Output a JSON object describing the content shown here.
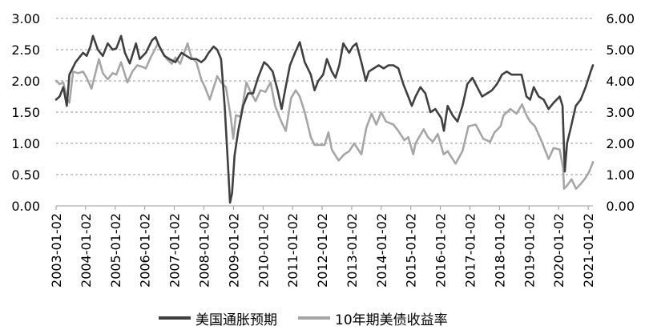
{
  "chart_data": {
    "type": "line",
    "title": "",
    "xlabel": "",
    "ylabel": "",
    "y_left": {
      "lim": [
        0,
        3
      ],
      "ticks": [
        "0.00",
        "0.50",
        "1.00",
        "1.50",
        "2.00",
        "2.50",
        "3.00"
      ]
    },
    "y_right": {
      "lim": [
        0,
        6
      ],
      "ticks": [
        "0.00",
        "1.00",
        "2.00",
        "3.00",
        "4.00",
        "5.00",
        "6.00"
      ]
    },
    "x_ticks": [
      "2003-01-02",
      "2004-01-02",
      "2005-01-02",
      "2006-01-02",
      "2007-01-02",
      "2008-01-02",
      "2009-01-02",
      "2010-01-02",
      "2011-01-02",
      "2012-01-02",
      "2013-01-02",
      "2014-01-02",
      "2015-01-02",
      "2016-01-02",
      "2017-01-02",
      "2018-01-02",
      "2019-01-02",
      "2020-01-02",
      "2021-01-02"
    ],
    "grid": {
      "horizontal": true,
      "vertical": false,
      "style": "dashed"
    },
    "legend": {
      "position": "bottom"
    },
    "series": [
      {
        "name": "美国通胀预期",
        "axis": "left",
        "color": "#404040",
        "points": [
          [
            "2003-01-02",
            1.7
          ],
          [
            "2003-02-15",
            1.75
          ],
          [
            "2003-04-01",
            1.9
          ],
          [
            "2003-05-15",
            1.6
          ],
          [
            "2003-06-15",
            2.1
          ],
          [
            "2003-09-01",
            2.3
          ],
          [
            "2003-12-01",
            2.45
          ],
          [
            "2004-01-15",
            2.4
          ],
          [
            "2004-03-01",
            2.55
          ],
          [
            "2004-04-01",
            2.72
          ],
          [
            "2004-06-01",
            2.5
          ],
          [
            "2004-08-01",
            2.4
          ],
          [
            "2004-10-01",
            2.6
          ],
          [
            "2004-12-01",
            2.5
          ],
          [
            "2005-01-15",
            2.52
          ],
          [
            "2005-03-15",
            2.72
          ],
          [
            "2005-05-01",
            2.45
          ],
          [
            "2005-07-01",
            2.28
          ],
          [
            "2005-09-15",
            2.6
          ],
          [
            "2005-11-01",
            2.35
          ],
          [
            "2006-01-15",
            2.45
          ],
          [
            "2006-04-01",
            2.65
          ],
          [
            "2006-05-15",
            2.7
          ],
          [
            "2006-07-01",
            2.55
          ],
          [
            "2006-09-01",
            2.4
          ],
          [
            "2006-11-01",
            2.35
          ],
          [
            "2007-01-15",
            2.3
          ],
          [
            "2007-04-01",
            2.45
          ],
          [
            "2007-06-01",
            2.4
          ],
          [
            "2007-08-01",
            2.35
          ],
          [
            "2007-10-01",
            2.35
          ],
          [
            "2007-12-01",
            2.3
          ],
          [
            "2008-01-15",
            2.35
          ],
          [
            "2008-03-01",
            2.45
          ],
          [
            "2008-05-01",
            2.55
          ],
          [
            "2008-06-15",
            2.5
          ],
          [
            "2008-08-01",
            2.35
          ],
          [
            "2008-09-15",
            1.6
          ],
          [
            "2008-10-20",
            0.8
          ],
          [
            "2008-11-20",
            0.05
          ],
          [
            "2008-12-15",
            0.2
          ],
          [
            "2009-01-15",
            0.8
          ],
          [
            "2009-03-01",
            1.2
          ],
          [
            "2009-05-01",
            1.6
          ],
          [
            "2009-07-01",
            1.8
          ],
          [
            "2009-09-01",
            1.8
          ],
          [
            "2009-11-01",
            2.05
          ],
          [
            "2010-01-15",
            2.3
          ],
          [
            "2010-03-01",
            2.25
          ],
          [
            "2010-05-01",
            2.15
          ],
          [
            "2010-07-01",
            1.85
          ],
          [
            "2010-08-20",
            1.55
          ],
          [
            "2010-10-01",
            1.85
          ],
          [
            "2010-12-01",
            2.25
          ],
          [
            "2011-02-01",
            2.45
          ],
          [
            "2011-04-01",
            2.62
          ],
          [
            "2011-06-01",
            2.3
          ],
          [
            "2011-08-15",
            2.1
          ],
          [
            "2011-10-01",
            1.85
          ],
          [
            "2011-11-15",
            2.0
          ],
          [
            "2012-01-15",
            2.1
          ],
          [
            "2012-03-01",
            2.35
          ],
          [
            "2012-05-01",
            2.15
          ],
          [
            "2012-06-15",
            2.05
          ],
          [
            "2012-08-01",
            2.25
          ],
          [
            "2012-09-20",
            2.6
          ],
          [
            "2012-12-01",
            2.45
          ],
          [
            "2013-01-15",
            2.55
          ],
          [
            "2013-03-01",
            2.6
          ],
          [
            "2013-05-01",
            2.3
          ],
          [
            "2013-06-25",
            2.0
          ],
          [
            "2013-08-01",
            2.15
          ],
          [
            "2013-10-01",
            2.2
          ],
          [
            "2013-12-01",
            2.25
          ],
          [
            "2014-02-01",
            2.2
          ],
          [
            "2014-04-01",
            2.25
          ],
          [
            "2014-06-01",
            2.25
          ],
          [
            "2014-08-01",
            2.2
          ],
          [
            "2014-10-01",
            1.95
          ],
          [
            "2014-12-01",
            1.75
          ],
          [
            "2015-01-15",
            1.6
          ],
          [
            "2015-03-01",
            1.75
          ],
          [
            "2015-05-01",
            1.9
          ],
          [
            "2015-07-01",
            1.8
          ],
          [
            "2015-09-01",
            1.5
          ],
          [
            "2015-11-01",
            1.55
          ],
          [
            "2016-01-15",
            1.4
          ],
          [
            "2016-02-15",
            1.2
          ],
          [
            "2016-04-01",
            1.6
          ],
          [
            "2016-06-01",
            1.45
          ],
          [
            "2016-08-01",
            1.35
          ],
          [
            "2016-10-01",
            1.6
          ],
          [
            "2016-12-01",
            1.95
          ],
          [
            "2017-02-01",
            2.05
          ],
          [
            "2017-04-01",
            1.9
          ],
          [
            "2017-06-01",
            1.75
          ],
          [
            "2017-08-01",
            1.8
          ],
          [
            "2017-10-01",
            1.85
          ],
          [
            "2017-12-01",
            1.95
          ],
          [
            "2018-02-01",
            2.1
          ],
          [
            "2018-04-01",
            2.15
          ],
          [
            "2018-06-01",
            2.1
          ],
          [
            "2018-08-01",
            2.1
          ],
          [
            "2018-10-01",
            2.1
          ],
          [
            "2018-12-01",
            1.75
          ],
          [
            "2019-01-15",
            1.7
          ],
          [
            "2019-03-01",
            1.9
          ],
          [
            "2019-05-01",
            1.75
          ],
          [
            "2019-07-01",
            1.7
          ],
          [
            "2019-09-01",
            1.55
          ],
          [
            "2019-11-01",
            1.65
          ],
          [
            "2020-01-15",
            1.75
          ],
          [
            "2020-02-20",
            1.6
          ],
          [
            "2020-03-19",
            0.55
          ],
          [
            "2020-04-15",
            1.0
          ],
          [
            "2020-06-01",
            1.25
          ],
          [
            "2020-08-01",
            1.6
          ],
          [
            "2020-10-01",
            1.7
          ],
          [
            "2020-12-01",
            1.9
          ],
          [
            "2021-02-01",
            2.15
          ],
          [
            "2021-03-01",
            2.25
          ]
        ]
      },
      {
        "name": "10年期美债收益率",
        "axis": "right",
        "color": "#a6a6a6",
        "points": [
          [
            "2003-01-02",
            4.0
          ],
          [
            "2003-02-15",
            3.9
          ],
          [
            "2003-04-01",
            3.95
          ],
          [
            "2003-05-15",
            3.45
          ],
          [
            "2003-06-15",
            3.3
          ],
          [
            "2003-08-01",
            4.3
          ],
          [
            "2003-10-01",
            4.25
          ],
          [
            "2003-12-01",
            4.3
          ],
          [
            "2004-01-15",
            4.1
          ],
          [
            "2004-03-15",
            3.75
          ],
          [
            "2004-06-15",
            4.7
          ],
          [
            "2004-08-01",
            4.25
          ],
          [
            "2004-10-01",
            4.05
          ],
          [
            "2004-12-01",
            4.25
          ],
          [
            "2005-01-15",
            4.2
          ],
          [
            "2005-03-15",
            4.6
          ],
          [
            "2005-06-01",
            3.95
          ],
          [
            "2005-08-01",
            4.3
          ],
          [
            "2005-10-01",
            4.5
          ],
          [
            "2005-12-01",
            4.45
          ],
          [
            "2006-01-15",
            4.4
          ],
          [
            "2006-03-15",
            4.75
          ],
          [
            "2006-06-15",
            5.2
          ],
          [
            "2006-08-01",
            4.95
          ],
          [
            "2006-10-01",
            4.7
          ],
          [
            "2006-12-01",
            4.55
          ],
          [
            "2007-01-15",
            4.75
          ],
          [
            "2007-03-15",
            4.55
          ],
          [
            "2007-06-15",
            5.2
          ],
          [
            "2007-08-01",
            4.75
          ],
          [
            "2007-10-01",
            4.6
          ],
          [
            "2007-12-01",
            4.05
          ],
          [
            "2008-01-15",
            3.8
          ],
          [
            "2008-03-15",
            3.4
          ],
          [
            "2008-06-15",
            4.15
          ],
          [
            "2008-08-01",
            3.95
          ],
          [
            "2008-10-01",
            3.8
          ],
          [
            "2008-12-01",
            2.8
          ],
          [
            "2008-12-30",
            2.15
          ],
          [
            "2009-02-01",
            2.9
          ],
          [
            "2009-04-01",
            2.85
          ],
          [
            "2009-06-10",
            3.95
          ],
          [
            "2009-08-01",
            3.65
          ],
          [
            "2009-10-01",
            3.35
          ],
          [
            "2009-12-01",
            3.7
          ],
          [
            "2010-02-01",
            3.65
          ],
          [
            "2010-04-05",
            3.95
          ],
          [
            "2010-06-01",
            3.2
          ],
          [
            "2010-08-15",
            2.7
          ],
          [
            "2010-10-10",
            2.4
          ],
          [
            "2010-12-15",
            3.45
          ],
          [
            "2011-02-10",
            3.7
          ],
          [
            "2011-04-01",
            3.5
          ],
          [
            "2011-06-01",
            3.0
          ],
          [
            "2011-08-15",
            2.2
          ],
          [
            "2011-10-01",
            1.95
          ],
          [
            "2011-12-01",
            1.95
          ],
          [
            "2012-02-01",
            1.95
          ],
          [
            "2012-03-20",
            2.35
          ],
          [
            "2012-05-01",
            1.8
          ],
          [
            "2012-07-25",
            1.45
          ],
          [
            "2012-10-01",
            1.65
          ],
          [
            "2012-12-01",
            1.75
          ],
          [
            "2013-02-01",
            2.0
          ],
          [
            "2013-05-01",
            1.65
          ],
          [
            "2013-07-01",
            2.5
          ],
          [
            "2013-09-05",
            2.95
          ],
          [
            "2013-11-01",
            2.6
          ],
          [
            "2014-01-01",
            3.0
          ],
          [
            "2014-03-01",
            2.7
          ],
          [
            "2014-06-01",
            2.6
          ],
          [
            "2014-08-01",
            2.4
          ],
          [
            "2014-10-15",
            2.1
          ],
          [
            "2014-12-01",
            2.2
          ],
          [
            "2015-01-31",
            1.65
          ],
          [
            "2015-03-01",
            2.0
          ],
          [
            "2015-06-10",
            2.45
          ],
          [
            "2015-08-01",
            2.2
          ],
          [
            "2015-10-01",
            2.05
          ],
          [
            "2015-12-01",
            2.3
          ],
          [
            "2016-02-11",
            1.65
          ],
          [
            "2016-04-01",
            1.75
          ],
          [
            "2016-07-08",
            1.35
          ],
          [
            "2016-10-01",
            1.75
          ],
          [
            "2016-12-15",
            2.55
          ],
          [
            "2017-03-15",
            2.6
          ],
          [
            "2017-06-15",
            2.15
          ],
          [
            "2017-09-08",
            2.05
          ],
          [
            "2017-11-01",
            2.35
          ],
          [
            "2018-01-15",
            2.55
          ],
          [
            "2018-02-21",
            2.9
          ],
          [
            "2018-05-15",
            3.1
          ],
          [
            "2018-08-01",
            2.95
          ],
          [
            "2018-10-08",
            3.25
          ],
          [
            "2018-12-01",
            2.9
          ],
          [
            "2019-01-15",
            2.7
          ],
          [
            "2019-03-15",
            2.55
          ],
          [
            "2019-06-01",
            2.1
          ],
          [
            "2019-09-01",
            1.5
          ],
          [
            "2019-11-01",
            1.85
          ],
          [
            "2020-01-15",
            1.8
          ],
          [
            "2020-02-28",
            1.2
          ],
          [
            "2020-03-09",
            0.55
          ],
          [
            "2020-04-15",
            0.65
          ],
          [
            "2020-06-10",
            0.85
          ],
          [
            "2020-08-04",
            0.55
          ],
          [
            "2020-10-01",
            0.7
          ],
          [
            "2020-12-01",
            0.9
          ],
          [
            "2021-01-15",
            1.1
          ],
          [
            "2021-02-15",
            1.3
          ],
          [
            "2021-03-01",
            1.4
          ]
        ]
      }
    ]
  }
}
